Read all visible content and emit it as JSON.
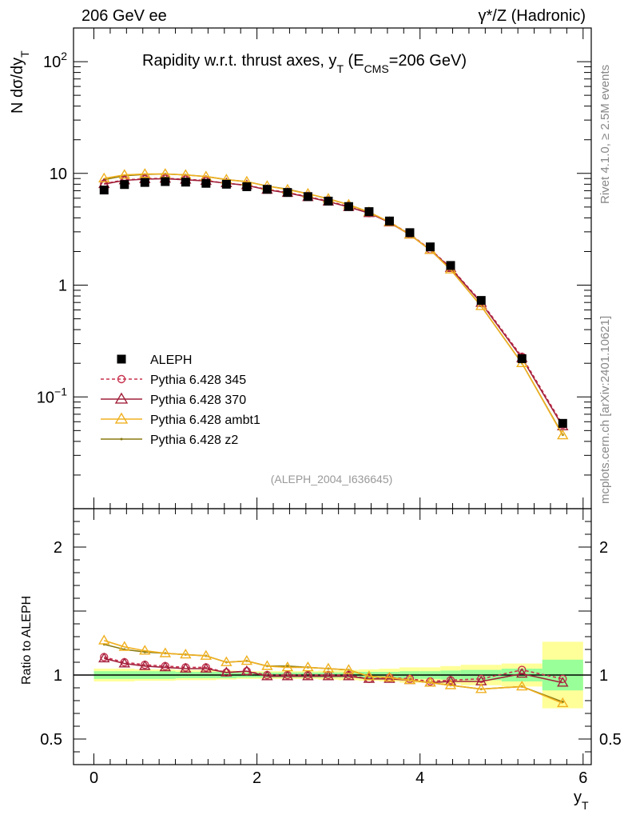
{
  "header": {
    "left": "206 GeV ee",
    "right": "γ*/Z (Hadronic)"
  },
  "side": {
    "rivet": "Rivet 4.1.0, ≥ 2.5M events",
    "mcplots": "mcplots.cern.ch [arXiv:2401.10621]"
  },
  "chart_data": {
    "type": "line",
    "title": "Rapidity w.r.t. thrust axes, y_T (E_CMS=206 GeV)",
    "title_parts": {
      "main": "Rapidity w.r.t. thrust axes, y",
      "sub_t": "T",
      "mid": " (E",
      "sub_cms": "CMS",
      "end": "=206 GeV)"
    },
    "analysis_label": "(ALEPH_2004_I636645)",
    "xlabel": "y",
    "xlabel_sub": "T",
    "ylabel": "N  dσ/dy",
    "ylabel_sub": "T",
    "ratio_ylabel": "Ratio to ALEPH",
    "xlim": [
      -0.25,
      6.1
    ],
    "ylim": [
      0.01,
      200
    ],
    "ratio_ylim": [
      0.3,
      2.3
    ],
    "x_ticks": [
      "0",
      "2",
      "4",
      "6"
    ],
    "y_ticks": [
      "10^2",
      "10",
      "1",
      "10^-1"
    ],
    "ratio_ticks": [
      "2",
      "1",
      "0.5"
    ],
    "x": [
      0.125,
      0.375,
      0.625,
      0.875,
      1.125,
      1.375,
      1.625,
      1.875,
      2.125,
      2.375,
      2.625,
      2.875,
      3.125,
      3.375,
      3.625,
      3.875,
      4.125,
      4.375,
      4.75,
      5.25,
      5.75
    ],
    "bin_edges": [
      0.0,
      0.25,
      0.5,
      0.75,
      1.0,
      1.25,
      1.5,
      1.75,
      2.0,
      2.25,
      2.5,
      2.75,
      3.0,
      3.25,
      3.5,
      3.75,
      4.0,
      4.25,
      4.5,
      5.0,
      5.5,
      6.0
    ],
    "data": {
      "name": "ALEPH",
      "values": [
        7.1,
        7.95,
        8.3,
        8.45,
        8.35,
        8.15,
        8.0,
        7.6,
        7.2,
        6.75,
        6.2,
        5.65,
        5.05,
        4.55,
        3.75,
        2.95,
        2.2,
        1.5,
        0.73,
        0.22,
        0.058
      ]
    },
    "band_inner": [
      0.03,
      0.03,
      0.03,
      0.03,
      0.025,
      0.025,
      0.025,
      0.02,
      0.02,
      0.02,
      0.02,
      0.02,
      0.02,
      0.025,
      0.025,
      0.03,
      0.03,
      0.035,
      0.04,
      0.05,
      0.12
    ],
    "band_outer": [
      0.05,
      0.05,
      0.045,
      0.045,
      0.04,
      0.04,
      0.035,
      0.03,
      0.03,
      0.03,
      0.03,
      0.035,
      0.04,
      0.045,
      0.05,
      0.06,
      0.06,
      0.07,
      0.08,
      0.09,
      0.26
    ],
    "series": [
      {
        "name": "Pythia 6.428 345",
        "color": "#c8324f",
        "marker": "circle",
        "dashed": true,
        "ratio": [
          1.14,
          1.1,
          1.08,
          1.07,
          1.06,
          1.06,
          1.02,
          1.03,
          1.0,
          1.0,
          1.0,
          1.0,
          1.0,
          0.97,
          0.98,
          0.97,
          0.95,
          0.96,
          0.97,
          1.04,
          0.97
        ]
      },
      {
        "name": "Pythia 6.428 370",
        "color": "#a0203a",
        "marker": "triangle",
        "dashed": false,
        "ratio": [
          1.13,
          1.09,
          1.07,
          1.06,
          1.05,
          1.05,
          1.02,
          1.03,
          0.99,
          0.99,
          0.99,
          0.99,
          0.99,
          0.97,
          0.97,
          0.96,
          0.94,
          0.95,
          0.95,
          1.01,
          0.94
        ]
      },
      {
        "name": "Pythia 6.428 ambt1",
        "color": "#f0b020",
        "marker": "triangle",
        "dashed": false,
        "ratio": [
          1.27,
          1.22,
          1.19,
          1.17,
          1.16,
          1.15,
          1.1,
          1.11,
          1.07,
          1.06,
          1.06,
          1.05,
          1.04,
          0.99,
          0.98,
          0.96,
          0.94,
          0.92,
          0.89,
          0.91,
          0.78
        ]
      },
      {
        "name": "Pythia 6.428 z2",
        "color": "#8a7a10",
        "marker": "dot",
        "dashed": false,
        "ratio": [
          1.24,
          1.2,
          1.18,
          1.17,
          1.16,
          1.15,
          1.1,
          1.11,
          1.07,
          1.07,
          1.06,
          1.05,
          1.04,
          0.99,
          0.98,
          0.96,
          0.94,
          0.92,
          0.89,
          0.91,
          0.79
        ]
      }
    ]
  }
}
